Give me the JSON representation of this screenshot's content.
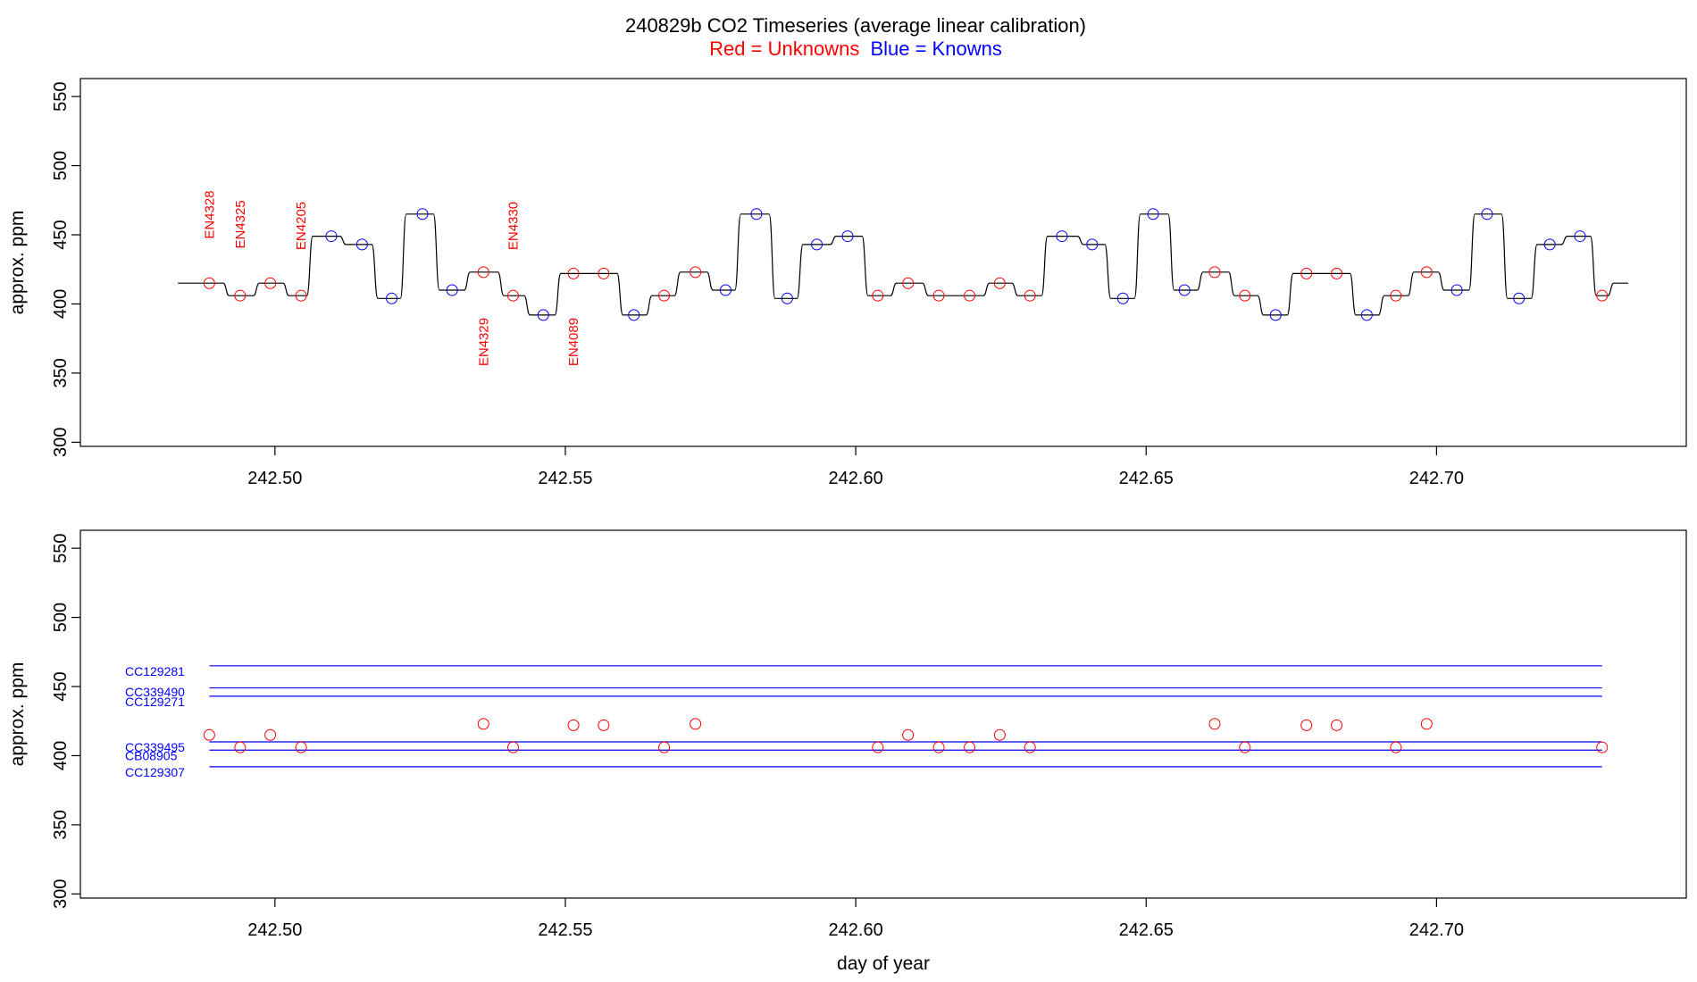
{
  "title": {
    "main": "240829b   CO2 Timeseries (average linear calibration)",
    "legend_red": "Red = Unknowns",
    "legend_blue": "Blue = Knowns"
  },
  "colors": {
    "unknown": "#ff0000",
    "known": "#0000ff",
    "trace": "#000000",
    "axis": "#000000"
  },
  "chart_data": [
    {
      "type": "line",
      "panel": "top",
      "xlabel": "",
      "ylabel": "approx. ppm",
      "xlim": [
        242.4665,
        242.743
      ],
      "ylim": [
        297,
        563
      ],
      "xticks": [
        "242.50",
        "242.55",
        "242.60",
        "242.65",
        "242.70"
      ],
      "yticks": [
        "300",
        "350",
        "400",
        "450",
        "500",
        "550"
      ],
      "trace_levels": [
        [
          242.4833,
          415
        ],
        [
          242.4888,
          415
        ],
        [
          242.4916,
          406
        ],
        [
          242.4968,
          415
        ],
        [
          242.5019,
          406
        ],
        [
          242.506,
          449
        ],
        [
          242.5117,
          443
        ],
        [
          242.5172,
          404
        ],
        [
          242.5221,
          465
        ],
        [
          242.5278,
          410
        ],
        [
          242.5331,
          423
        ],
        [
          242.5389,
          406
        ],
        [
          242.5434,
          392
        ],
        [
          242.5487,
          422
        ],
        [
          242.5594,
          392
        ],
        [
          242.5644,
          406
        ],
        [
          242.5693,
          423
        ],
        [
          242.5749,
          410
        ],
        [
          242.5797,
          465
        ],
        [
          242.5856,
          404
        ],
        [
          242.5904,
          443
        ],
        [
          242.5961,
          449
        ],
        [
          242.6016,
          406
        ],
        [
          242.6065,
          415
        ],
        [
          242.612,
          406
        ],
        [
          242.6225,
          415
        ],
        [
          242.6274,
          406
        ],
        [
          242.6325,
          449
        ],
        [
          242.6387,
          443
        ],
        [
          242.6434,
          404
        ],
        [
          242.6485,
          465
        ],
        [
          242.6543,
          410
        ],
        [
          242.6593,
          423
        ],
        [
          242.6647,
          406
        ],
        [
          242.6697,
          392
        ],
        [
          242.6748,
          422
        ],
        [
          242.6856,
          392
        ],
        [
          242.6905,
          406
        ],
        [
          242.6956,
          423
        ],
        [
          242.7008,
          410
        ],
        [
          242.7061,
          465
        ],
        [
          242.7117,
          404
        ],
        [
          242.7168,
          443
        ],
        [
          242.722,
          449
        ],
        [
          242.727,
          406
        ],
        [
          242.73,
          415
        ],
        [
          242.733,
          415
        ]
      ],
      "series": [
        {
          "name": "Unknowns",
          "points": [
            [
              242.4887,
              415
            ],
            [
              242.494,
              406
            ],
            [
              242.4992,
              415
            ],
            [
              242.5045,
              406
            ],
            [
              242.5359,
              423
            ],
            [
              242.541,
              406
            ],
            [
              242.5514,
              422
            ],
            [
              242.5566,
              422
            ],
            [
              242.567,
              406
            ],
            [
              242.5724,
              423
            ],
            [
              242.6038,
              406
            ],
            [
              242.609,
              415
            ],
            [
              242.6143,
              406
            ],
            [
              242.6196,
              406
            ],
            [
              242.6248,
              415
            ],
            [
              242.63,
              406
            ],
            [
              242.6618,
              423
            ],
            [
              242.667,
              406
            ],
            [
              242.6776,
              422
            ],
            [
              242.6828,
              422
            ],
            [
              242.693,
              406
            ],
            [
              242.6983,
              423
            ],
            [
              242.7285,
              406
            ]
          ]
        },
        {
          "name": "Knowns",
          "points": [
            [
              242.5097,
              449
            ],
            [
              242.515,
              443
            ],
            [
              242.5201,
              404
            ],
            [
              242.5254,
              465
            ],
            [
              242.5305,
              410
            ],
            [
              242.5462,
              392
            ],
            [
              242.5618,
              392
            ],
            [
              242.5776,
              410
            ],
            [
              242.5829,
              465
            ],
            [
              242.5882,
              404
            ],
            [
              242.5933,
              443
            ],
            [
              242.5986,
              449
            ],
            [
              242.6355,
              449
            ],
            [
              242.6407,
              443
            ],
            [
              242.646,
              404
            ],
            [
              242.6512,
              465
            ],
            [
              242.6566,
              410
            ],
            [
              242.6723,
              392
            ],
            [
              242.688,
              392
            ],
            [
              242.7035,
              410
            ],
            [
              242.7087,
              465
            ],
            [
              242.7142,
              404
            ],
            [
              242.7195,
              443
            ],
            [
              242.7247,
              449
            ]
          ]
        }
      ],
      "annotations": [
        {
          "text": "EN4328",
          "x": 242.4887,
          "y": 447
        },
        {
          "text": "EN4325",
          "x": 242.494,
          "y": 440
        },
        {
          "text": "EN4205",
          "x": 242.5045,
          "y": 439
        },
        {
          "text": "EN4329",
          "x": 242.5359,
          "y": 355
        },
        {
          "text": "EN4330",
          "x": 242.541,
          "y": 439
        },
        {
          "text": "EN4089",
          "x": 242.5514,
          "y": 355
        }
      ]
    },
    {
      "type": "scatter",
      "panel": "bottom",
      "xlabel": "day of year",
      "ylabel": "approx. ppm",
      "xlim": [
        242.4665,
        242.743
      ],
      "ylim": [
        297,
        563
      ],
      "xticks": [
        "242.50",
        "242.55",
        "242.60",
        "242.65",
        "242.70"
      ],
      "yticks": [
        "300",
        "350",
        "400",
        "450",
        "500",
        "550"
      ],
      "reference_lines": [
        {
          "name": "CC129281",
          "value": 465,
          "label_y": 461
        },
        {
          "name": "CC339490",
          "value": 449,
          "label_y": 446
        },
        {
          "name": "CC129271",
          "value": 443,
          "label_y": 439
        },
        {
          "name": "CC339495",
          "value": 410,
          "label_y": 406
        },
        {
          "name": "CB08905",
          "value": 404,
          "label_y": 400
        },
        {
          "name": "CC129307",
          "value": 392,
          "label_y": 388
        }
      ],
      "line_xrange": [
        242.4887,
        242.7285
      ],
      "series": [
        {
          "name": "Unknowns",
          "points": [
            [
              242.4887,
              415
            ],
            [
              242.494,
              406
            ],
            [
              242.4992,
              415
            ],
            [
              242.5045,
              406
            ],
            [
              242.5359,
              423
            ],
            [
              242.541,
              406
            ],
            [
              242.5514,
              422
            ],
            [
              242.5566,
              422
            ],
            [
              242.567,
              406
            ],
            [
              242.5724,
              423
            ],
            [
              242.6038,
              406
            ],
            [
              242.609,
              415
            ],
            [
              242.6143,
              406
            ],
            [
              242.6196,
              406
            ],
            [
              242.6248,
              415
            ],
            [
              242.63,
              406
            ],
            [
              242.6618,
              423
            ],
            [
              242.667,
              406
            ],
            [
              242.6776,
              422
            ],
            [
              242.6828,
              422
            ],
            [
              242.693,
              406
            ],
            [
              242.6983,
              423
            ],
            [
              242.7285,
              406
            ]
          ]
        }
      ]
    }
  ]
}
